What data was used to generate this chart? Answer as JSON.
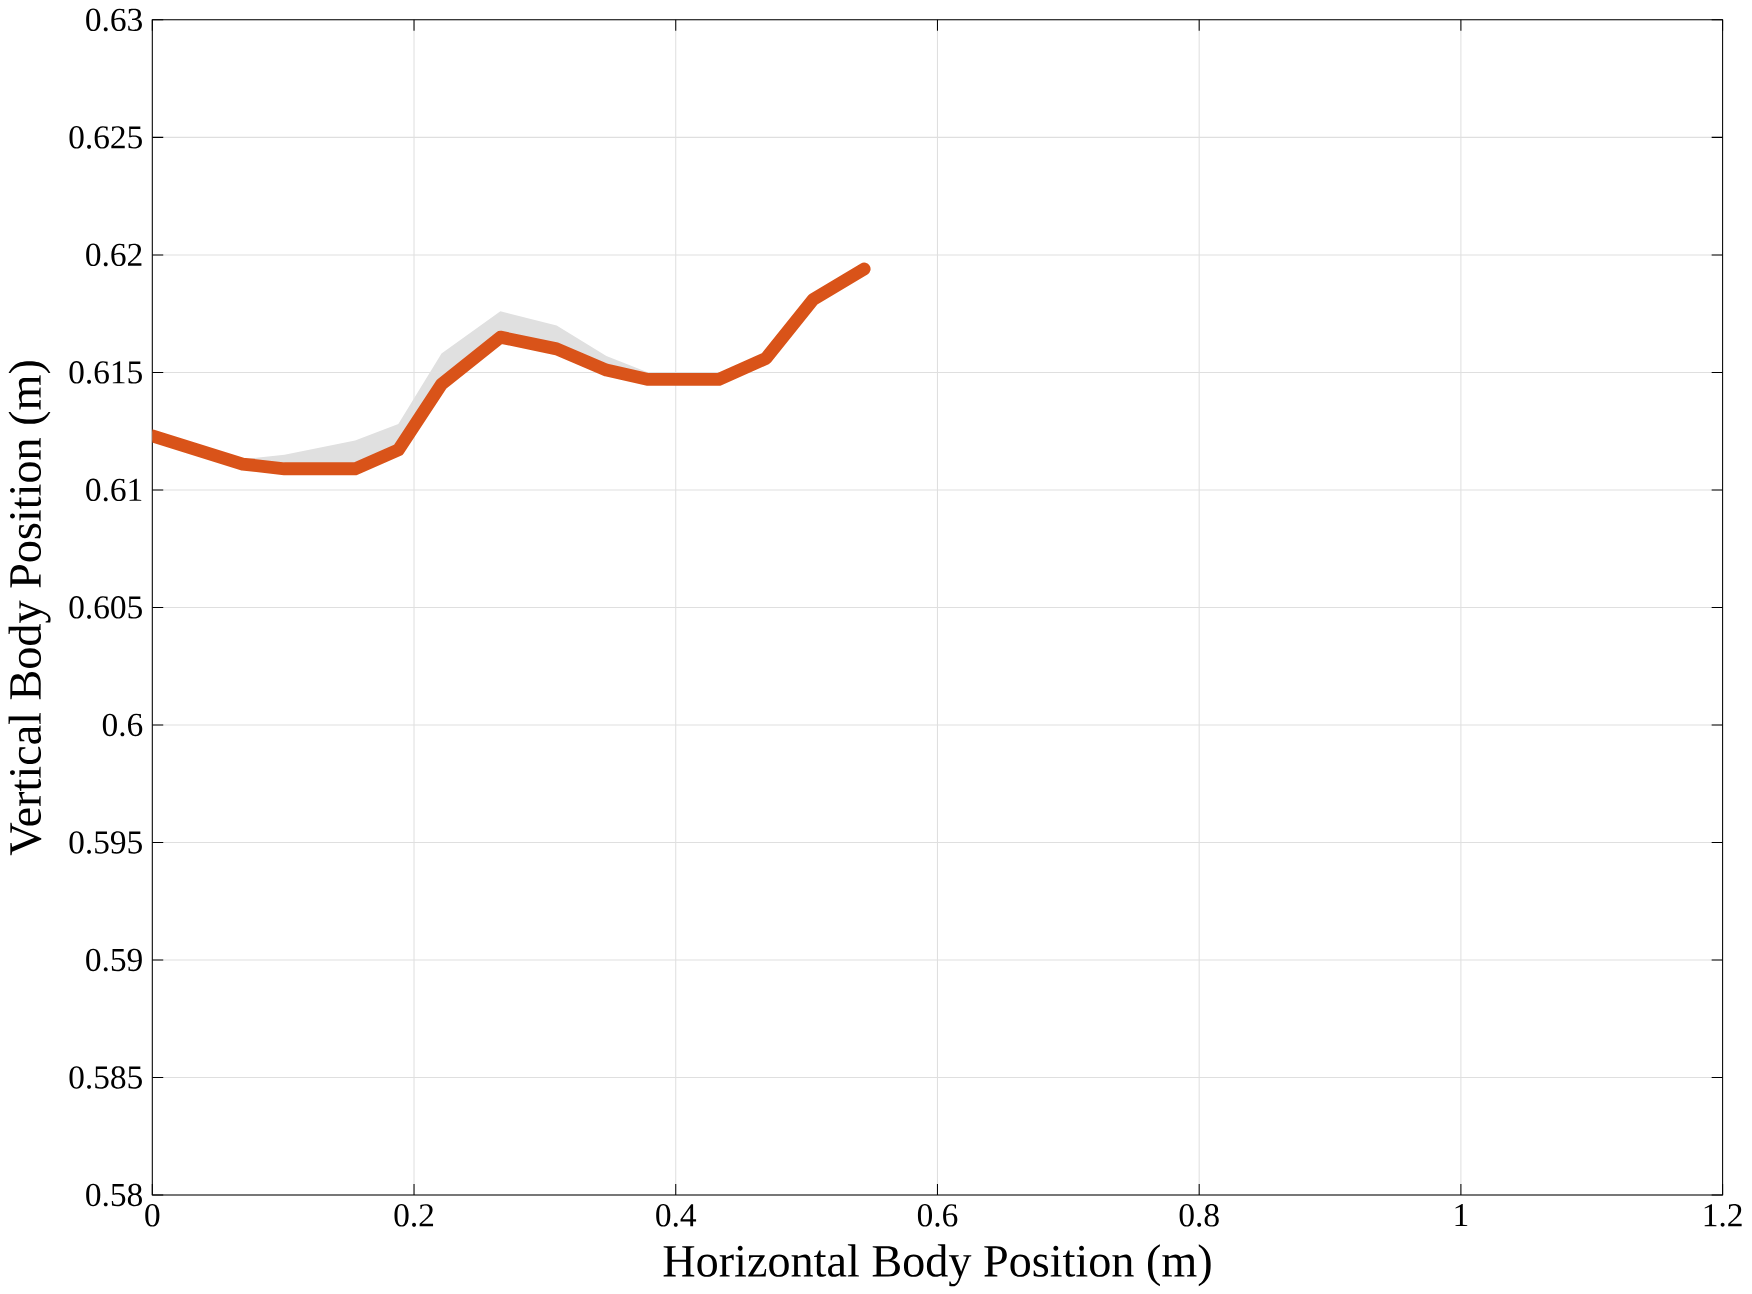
{
  "chart_data": {
    "type": "line",
    "xlabel": "Horizontal Body Position (m)",
    "ylabel": "Vertical Body Position (m)",
    "xlim": [
      0,
      1.2
    ],
    "ylim": [
      0.58,
      0.63
    ],
    "xticks": [
      0,
      0.2,
      0.4,
      0.6,
      0.8,
      1,
      1.2
    ],
    "yticks": [
      0.58,
      0.585,
      0.59,
      0.595,
      0.6,
      0.605,
      0.61,
      0.615,
      0.62,
      0.625,
      0.63
    ],
    "grid": true,
    "legend": false,
    "marker": "none",
    "line_style": "solid",
    "series": [
      {
        "color": "#d95319",
        "x": [
          0,
          0.069,
          0.101,
          0.155,
          0.188,
          0.221,
          0.266,
          0.309,
          0.347,
          0.379,
          0.433,
          0.469,
          0.505,
          0.544
        ],
        "values": [
          0.6123,
          0.6111,
          0.6109,
          0.6109,
          0.6117,
          0.6145,
          0.6165,
          0.616,
          0.6151,
          0.6147,
          0.6147,
          0.6156,
          0.6181,
          0.6194
        ],
        "lower": [
          0.6121,
          0.6109,
          0.6107,
          0.6107,
          0.6115,
          0.6143,
          0.6163,
          0.6158,
          0.6149,
          0.6145,
          0.6145,
          0.6154,
          0.6179,
          0.6192
        ],
        "upper": [
          0.6125,
          0.6113,
          0.6115,
          0.6121,
          0.6128,
          0.6158,
          0.6176,
          0.617,
          0.6157,
          0.615,
          0.6149,
          0.6158,
          0.6183,
          0.6196
        ]
      }
    ]
  }
}
